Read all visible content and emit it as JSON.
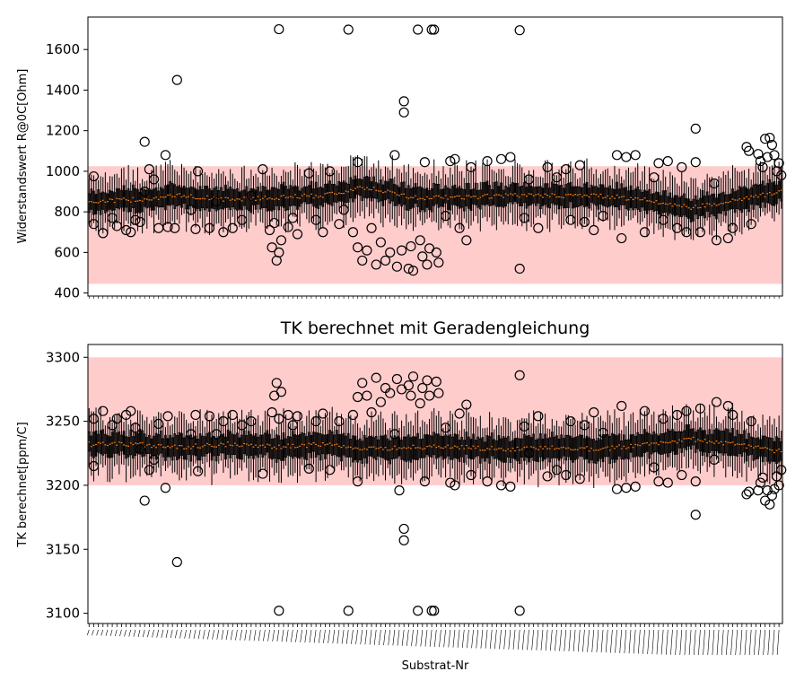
{
  "figure": {
    "background": "#ffffff",
    "band_color": "#ffcccc",
    "median_color": "#ff7f0e",
    "box_color": "#000000"
  },
  "chart_data": [
    {
      "type": "boxplot",
      "title": "",
      "xlabel": "",
      "ylabel": "Widerstandswert R@0C[Ohm]",
      "ylim": [
        385,
        1760
      ],
      "yticks": [
        400,
        600,
        800,
        1000,
        1200,
        1400,
        1600
      ],
      "tolerance_band": [
        445,
        1025
      ],
      "n_boxes": 300,
      "median_profile": {
        "x": [
          0,
          20,
          40,
          60,
          80,
          100,
          120,
          140,
          160,
          180,
          200,
          220,
          240,
          260,
          280,
          300
        ],
        "y": [
          850,
          860,
          880,
          860,
          870,
          880,
          920,
          870,
          870,
          880,
          880,
          880,
          860,
          820,
          860,
          900
        ]
      },
      "iqr_half_width": 60,
      "whisker_half_length": 120,
      "outliers": [
        {
          "box": 2,
          "y": 975
        },
        {
          "box": 2,
          "y": 740
        },
        {
          "box": 6,
          "y": 695
        },
        {
          "box": 10,
          "y": 770
        },
        {
          "box": 12,
          "y": 730
        },
        {
          "box": 16,
          "y": 710
        },
        {
          "box": 18,
          "y": 700
        },
        {
          "box": 20,
          "y": 760
        },
        {
          "box": 22,
          "y": 750
        },
        {
          "box": 24,
          "y": 900
        },
        {
          "box": 24,
          "y": 1145
        },
        {
          "box": 26,
          "y": 1010
        },
        {
          "box": 28,
          "y": 960
        },
        {
          "box": 30,
          "y": 720
        },
        {
          "box": 33,
          "y": 1080
        },
        {
          "box": 34,
          "y": 725
        },
        {
          "box": 37,
          "y": 720
        },
        {
          "box": 38,
          "y": 1450
        },
        {
          "box": 44,
          "y": 810
        },
        {
          "box": 46,
          "y": 715
        },
        {
          "box": 47,
          "y": 1000
        },
        {
          "box": 52,
          "y": 720
        },
        {
          "box": 55,
          "y": 850
        },
        {
          "box": 58,
          "y": 700
        },
        {
          "box": 62,
          "y": 720
        },
        {
          "box": 66,
          "y": 760
        },
        {
          "box": 70,
          "y": 880
        },
        {
          "box": 75,
          "y": 1010
        },
        {
          "box": 78,
          "y": 710
        },
        {
          "box": 79,
          "y": 625
        },
        {
          "box": 80,
          "y": 745
        },
        {
          "box": 81,
          "y": 560
        },
        {
          "box": 82,
          "y": 1700
        },
        {
          "box": 82,
          "y": 600
        },
        {
          "box": 83,
          "y": 660
        },
        {
          "box": 86,
          "y": 725
        },
        {
          "box": 88,
          "y": 770
        },
        {
          "box": 90,
          "y": 690
        },
        {
          "box": 95,
          "y": 990
        },
        {
          "box": 98,
          "y": 760
        },
        {
          "box": 101,
          "y": 700
        },
        {
          "box": 104,
          "y": 1000
        },
        {
          "box": 108,
          "y": 740
        },
        {
          "box": 110,
          "y": 810
        },
        {
          "box": 112,
          "y": 1698
        },
        {
          "box": 114,
          "y": 700
        },
        {
          "box": 116,
          "y": 1045
        },
        {
          "box": 116,
          "y": 625
        },
        {
          "box": 118,
          "y": 560
        },
        {
          "box": 120,
          "y": 610
        },
        {
          "box": 122,
          "y": 720
        },
        {
          "box": 124,
          "y": 540
        },
        {
          "box": 126,
          "y": 650
        },
        {
          "box": 128,
          "y": 560
        },
        {
          "box": 130,
          "y": 600
        },
        {
          "box": 132,
          "y": 1080
        },
        {
          "box": 133,
          "y": 530
        },
        {
          "box": 135,
          "y": 610
        },
        {
          "box": 136,
          "y": 1345
        },
        {
          "box": 136,
          "y": 1290
        },
        {
          "box": 138,
          "y": 520
        },
        {
          "box": 139,
          "y": 630
        },
        {
          "box": 140,
          "y": 510
        },
        {
          "box": 142,
          "y": 1698
        },
        {
          "box": 143,
          "y": 660
        },
        {
          "box": 144,
          "y": 580
        },
        {
          "box": 145,
          "y": 1045
        },
        {
          "box": 146,
          "y": 540
        },
        {
          "box": 147,
          "y": 620
        },
        {
          "box": 148,
          "y": 1698
        },
        {
          "box": 149,
          "y": 1698
        },
        {
          "box": 150,
          "y": 600
        },
        {
          "box": 151,
          "y": 550
        },
        {
          "box": 154,
          "y": 780
        },
        {
          "box": 156,
          "y": 1050
        },
        {
          "box": 158,
          "y": 1060
        },
        {
          "box": 160,
          "y": 720
        },
        {
          "box": 163,
          "y": 660
        },
        {
          "box": 165,
          "y": 1020
        },
        {
          "box": 172,
          "y": 1050
        },
        {
          "box": 178,
          "y": 1060
        },
        {
          "box": 182,
          "y": 1070
        },
        {
          "box": 186,
          "y": 1695
        },
        {
          "box": 186,
          "y": 520
        },
        {
          "box": 188,
          "y": 770
        },
        {
          "box": 190,
          "y": 960
        },
        {
          "box": 194,
          "y": 720
        },
        {
          "box": 198,
          "y": 1020
        },
        {
          "box": 202,
          "y": 970
        },
        {
          "box": 206,
          "y": 1010
        },
        {
          "box": 208,
          "y": 760
        },
        {
          "box": 212,
          "y": 1030
        },
        {
          "box": 214,
          "y": 750
        },
        {
          "box": 218,
          "y": 710
        },
        {
          "box": 222,
          "y": 780
        },
        {
          "box": 228,
          "y": 1080
        },
        {
          "box": 230,
          "y": 670
        },
        {
          "box": 232,
          "y": 1070
        },
        {
          "box": 236,
          "y": 1080
        },
        {
          "box": 240,
          "y": 700
        },
        {
          "box": 244,
          "y": 970
        },
        {
          "box": 246,
          "y": 1040
        },
        {
          "box": 248,
          "y": 760
        },
        {
          "box": 250,
          "y": 1050
        },
        {
          "box": 254,
          "y": 720
        },
        {
          "box": 256,
          "y": 1020
        },
        {
          "box": 258,
          "y": 700
        },
        {
          "box": 262,
          "y": 1210
        },
        {
          "box": 262,
          "y": 1045
        },
        {
          "box": 264,
          "y": 700
        },
        {
          "box": 270,
          "y": 940
        },
        {
          "box": 271,
          "y": 660
        },
        {
          "box": 276,
          "y": 670
        },
        {
          "box": 278,
          "y": 720
        },
        {
          "box": 284,
          "y": 1120
        },
        {
          "box": 285,
          "y": 1100
        },
        {
          "box": 286,
          "y": 740
        },
        {
          "box": 289,
          "y": 1085
        },
        {
          "box": 290,
          "y": 1050
        },
        {
          "box": 291,
          "y": 1020
        },
        {
          "box": 292,
          "y": 1160
        },
        {
          "box": 293,
          "y": 1070
        },
        {
          "box": 294,
          "y": 1165
        },
        {
          "box": 295,
          "y": 1130
        },
        {
          "box": 296,
          "y": 1080
        },
        {
          "box": 297,
          "y": 1000
        },
        {
          "box": 298,
          "y": 1040
        },
        {
          "box": 299,
          "y": 980
        }
      ]
    },
    {
      "type": "boxplot",
      "title": "TK berechnet mit Geradengleichung",
      "xlabel": "Substrat-Nr",
      "ylabel": "TK berechnet[ppm/C]",
      "ylim": [
        3092,
        3310
      ],
      "yticks": [
        3100,
        3150,
        3200,
        3250,
        3300
      ],
      "tolerance_band": [
        3200,
        3300
      ],
      "n_boxes": 300,
      "median_profile": {
        "x": [
          0,
          20,
          40,
          60,
          80,
          100,
          120,
          140,
          160,
          180,
          200,
          220,
          240,
          260,
          280,
          300
        ],
        "y": [
          3232,
          3232,
          3230,
          3232,
          3230,
          3232,
          3228,
          3230,
          3230,
          3228,
          3230,
          3228,
          3232,
          3236,
          3232,
          3226
        ]
      },
      "iqr_half_width": 10,
      "whisker_half_length": 20,
      "outliers": [
        {
          "box": 2,
          "y": 3252
        },
        {
          "box": 2,
          "y": 3215
        },
        {
          "box": 6,
          "y": 3258
        },
        {
          "box": 10,
          "y": 3247
        },
        {
          "box": 12,
          "y": 3252
        },
        {
          "box": 16,
          "y": 3255
        },
        {
          "box": 18,
          "y": 3258
        },
        {
          "box": 20,
          "y": 3245
        },
        {
          "box": 22,
          "y": 3228
        },
        {
          "box": 24,
          "y": 3188
        },
        {
          "box": 26,
          "y": 3212
        },
        {
          "box": 28,
          "y": 3220
        },
        {
          "box": 30,
          "y": 3248
        },
        {
          "box": 33,
          "y": 3198
        },
        {
          "box": 34,
          "y": 3254
        },
        {
          "box": 38,
          "y": 3140
        },
        {
          "box": 44,
          "y": 3240
        },
        {
          "box": 46,
          "y": 3255
        },
        {
          "box": 47,
          "y": 3211
        },
        {
          "box": 52,
          "y": 3254
        },
        {
          "box": 55,
          "y": 3240
        },
        {
          "box": 58,
          "y": 3250
        },
        {
          "box": 62,
          "y": 3255
        },
        {
          "box": 66,
          "y": 3247
        },
        {
          "box": 70,
          "y": 3250
        },
        {
          "box": 75,
          "y": 3209
        },
        {
          "box": 79,
          "y": 3257
        },
        {
          "box": 80,
          "y": 3270
        },
        {
          "box": 81,
          "y": 3280
        },
        {
          "box": 82,
          "y": 3102
        },
        {
          "box": 82,
          "y": 3252
        },
        {
          "box": 83,
          "y": 3273
        },
        {
          "box": 86,
          "y": 3255
        },
        {
          "box": 88,
          "y": 3247
        },
        {
          "box": 90,
          "y": 3254
        },
        {
          "box": 95,
          "y": 3213
        },
        {
          "box": 98,
          "y": 3250
        },
        {
          "box": 101,
          "y": 3256
        },
        {
          "box": 104,
          "y": 3212
        },
        {
          "box": 108,
          "y": 3250
        },
        {
          "box": 112,
          "y": 3102
        },
        {
          "box": 114,
          "y": 3255
        },
        {
          "box": 116,
          "y": 3203
        },
        {
          "box": 116,
          "y": 3269
        },
        {
          "box": 118,
          "y": 3280
        },
        {
          "box": 120,
          "y": 3270
        },
        {
          "box": 122,
          "y": 3257
        },
        {
          "box": 124,
          "y": 3284
        },
        {
          "box": 126,
          "y": 3265
        },
        {
          "box": 128,
          "y": 3276
        },
        {
          "box": 130,
          "y": 3272
        },
        {
          "box": 132,
          "y": 3240
        },
        {
          "box": 133,
          "y": 3283
        },
        {
          "box": 134,
          "y": 3196
        },
        {
          "box": 135,
          "y": 3275
        },
        {
          "box": 136,
          "y": 3166
        },
        {
          "box": 136,
          "y": 3157
        },
        {
          "box": 138,
          "y": 3278
        },
        {
          "box": 139,
          "y": 3270
        },
        {
          "box": 140,
          "y": 3285
        },
        {
          "box": 142,
          "y": 3102
        },
        {
          "box": 143,
          "y": 3264
        },
        {
          "box": 144,
          "y": 3276
        },
        {
          "box": 145,
          "y": 3203
        },
        {
          "box": 146,
          "y": 3282
        },
        {
          "box": 147,
          "y": 3270
        },
        {
          "box": 148,
          "y": 3102
        },
        {
          "box": 149,
          "y": 3102
        },
        {
          "box": 150,
          "y": 3281
        },
        {
          "box": 151,
          "y": 3272
        },
        {
          "box": 154,
          "y": 3245
        },
        {
          "box": 156,
          "y": 3202
        },
        {
          "box": 158,
          "y": 3200
        },
        {
          "box": 160,
          "y": 3256
        },
        {
          "box": 163,
          "y": 3263
        },
        {
          "box": 165,
          "y": 3208
        },
        {
          "box": 172,
          "y": 3203
        },
        {
          "box": 178,
          "y": 3200
        },
        {
          "box": 182,
          "y": 3199
        },
        {
          "box": 186,
          "y": 3102
        },
        {
          "box": 186,
          "y": 3286
        },
        {
          "box": 188,
          "y": 3246
        },
        {
          "box": 190,
          "y": 3225
        },
        {
          "box": 194,
          "y": 3254
        },
        {
          "box": 198,
          "y": 3207
        },
        {
          "box": 202,
          "y": 3212
        },
        {
          "box": 206,
          "y": 3208
        },
        {
          "box": 208,
          "y": 3250
        },
        {
          "box": 212,
          "y": 3205
        },
        {
          "box": 214,
          "y": 3247
        },
        {
          "box": 218,
          "y": 3257
        },
        {
          "box": 222,
          "y": 3241
        },
        {
          "box": 228,
          "y": 3197
        },
        {
          "box": 230,
          "y": 3262
        },
        {
          "box": 232,
          "y": 3198
        },
        {
          "box": 236,
          "y": 3199
        },
        {
          "box": 240,
          "y": 3258
        },
        {
          "box": 244,
          "y": 3214
        },
        {
          "box": 246,
          "y": 3203
        },
        {
          "box": 248,
          "y": 3252
        },
        {
          "box": 250,
          "y": 3202
        },
        {
          "box": 254,
          "y": 3255
        },
        {
          "box": 256,
          "y": 3208
        },
        {
          "box": 258,
          "y": 3258
        },
        {
          "box": 262,
          "y": 3177
        },
        {
          "box": 262,
          "y": 3203
        },
        {
          "box": 264,
          "y": 3260
        },
        {
          "box": 270,
          "y": 3220
        },
        {
          "box": 271,
          "y": 3265
        },
        {
          "box": 276,
          "y": 3262
        },
        {
          "box": 278,
          "y": 3255
        },
        {
          "box": 284,
          "y": 3193
        },
        {
          "box": 285,
          "y": 3195
        },
        {
          "box": 286,
          "y": 3250
        },
        {
          "box": 289,
          "y": 3196
        },
        {
          "box": 290,
          "y": 3202
        },
        {
          "box": 291,
          "y": 3206
        },
        {
          "box": 292,
          "y": 3188
        },
        {
          "box": 293,
          "y": 3196
        },
        {
          "box": 294,
          "y": 3185
        },
        {
          "box": 295,
          "y": 3192
        },
        {
          "box": 296,
          "y": 3197
        },
        {
          "box": 297,
          "y": 3207
        },
        {
          "box": 298,
          "y": 3200
        },
        {
          "box": 299,
          "y": 3212
        }
      ]
    }
  ]
}
